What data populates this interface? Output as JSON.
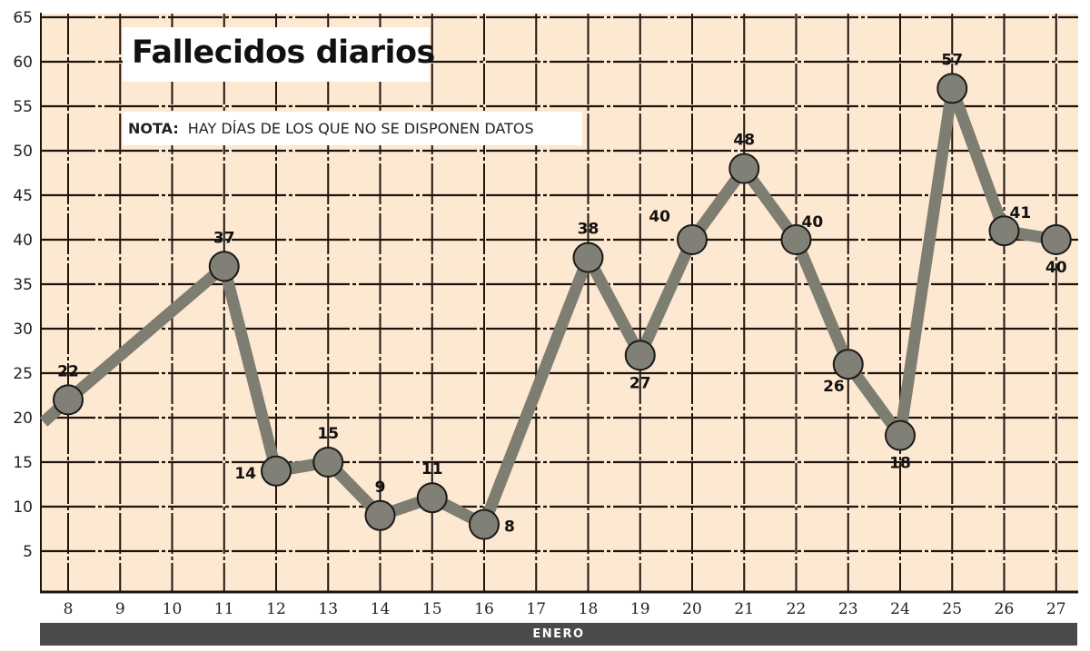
{
  "title": "Fallecidos diarios",
  "note": {
    "label": "NOTA:",
    "text": "HAY DÍAS DE LOS QUE NO SE DISPONEN DATOS"
  },
  "xaxis_band_label": "ENERO",
  "colors": {
    "plot_background": "#fde8d2",
    "grid": "#1e140c",
    "line": "#7e7d72",
    "marker_fill": "#818076",
    "marker_edge": "#1a1a1a",
    "band": "#4a4a4a"
  },
  "chart_data": {
    "type": "line",
    "title": "Fallecidos diarios",
    "subtitle": "NOTA: HAY DÍAS DE LOS QUE NO SE DISPONEN DATOS",
    "xlabel": "ENERO",
    "ylabel": "",
    "x_ticks": [
      "8",
      "9",
      "10",
      "11",
      "12",
      "13",
      "14",
      "15",
      "16",
      "17",
      "18",
      "19",
      "20",
      "21",
      "22",
      "23",
      "24",
      "25",
      "26",
      "27"
    ],
    "y_ticks": [
      5,
      10,
      15,
      20,
      25,
      30,
      35,
      40,
      45,
      50,
      55,
      60,
      65
    ],
    "ylim": [
      0,
      65
    ],
    "grid": true,
    "legend": null,
    "series": [
      {
        "name": "Fallecidos diarios",
        "x": [
          8,
          11,
          12,
          13,
          14,
          15,
          16,
          18,
          19,
          20,
          21,
          22,
          23,
          24,
          25,
          26,
          27
        ],
        "values": [
          22,
          37,
          14,
          15,
          9,
          11,
          8,
          38,
          27,
          40,
          48,
          40,
          26,
          18,
          57,
          41,
          40
        ]
      }
    ],
    "annotations": [
      {
        "x": 8,
        "label": "22",
        "pos": "above"
      },
      {
        "x": 11,
        "label": "37",
        "pos": "above"
      },
      {
        "x": 12,
        "label": "14",
        "pos": "left"
      },
      {
        "x": 13,
        "label": "15",
        "pos": "above"
      },
      {
        "x": 14,
        "label": "9",
        "pos": "above"
      },
      {
        "x": 15,
        "label": "11",
        "pos": "above"
      },
      {
        "x": 16,
        "label": "8",
        "pos": "right"
      },
      {
        "x": 18,
        "label": "38",
        "pos": "above"
      },
      {
        "x": 19,
        "label": "27",
        "pos": "below"
      },
      {
        "x": 20,
        "label": "40",
        "pos": "upper-left"
      },
      {
        "x": 21,
        "label": "48",
        "pos": "above"
      },
      {
        "x": 22,
        "label": "40",
        "pos": "upper-right"
      },
      {
        "x": 23,
        "label": "26",
        "pos": "lower-left"
      },
      {
        "x": 24,
        "label": "18",
        "pos": "below"
      },
      {
        "x": 25,
        "label": "57",
        "pos": "above"
      },
      {
        "x": 26,
        "label": "41",
        "pos": "upper-right"
      },
      {
        "x": 27,
        "label": "40",
        "pos": "below"
      }
    ],
    "line_entry": {
      "from_left_edge_value": 19.5
    }
  }
}
